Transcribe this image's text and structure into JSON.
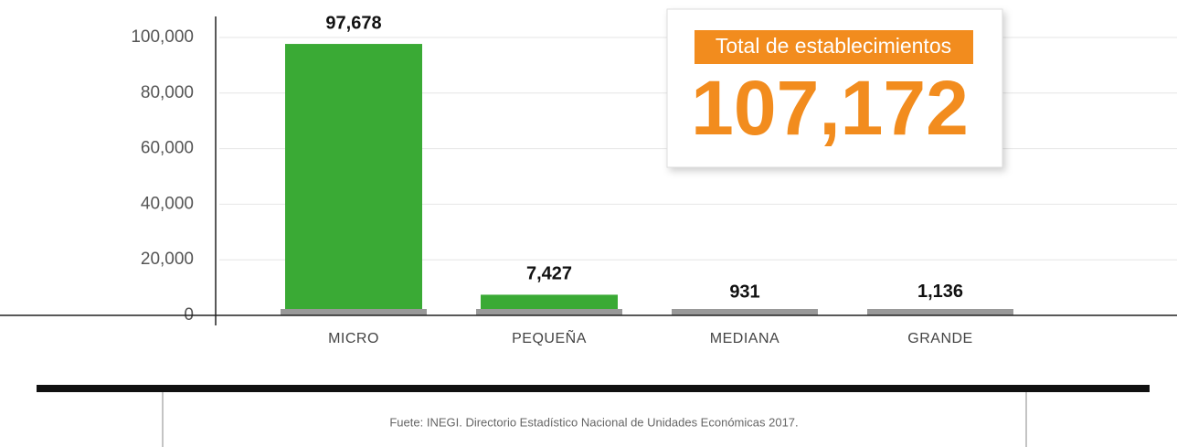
{
  "chart_data": {
    "type": "bar",
    "categories": [
      "MICRO",
      "PEQUEÑA",
      "MEDIANA",
      "GRANDE"
    ],
    "values": [
      97678,
      7427,
      931,
      1136
    ],
    "value_labels": [
      "97,678",
      "7,427",
      "931",
      "1,136"
    ],
    "color": "#3aaa35",
    "ylim": [
      0,
      100000
    ],
    "yticks": [
      0,
      {
        "value": 20000,
        "label": "20,000"
      },
      {
        "value": 40000,
        "label": "40,000"
      },
      {
        "value": 60000,
        "label": "60,000"
      },
      {
        "value": 80000,
        "label": "80,000"
      },
      {
        "value": 100000,
        "label": "100,000"
      }
    ],
    "grid": true,
    "annotations": [
      "Total de establecimientos",
      "107,172"
    ],
    "source": "Fuete: INEGI. Directorio Estadístico Nacional de Unidades Económicas 2017."
  }
}
